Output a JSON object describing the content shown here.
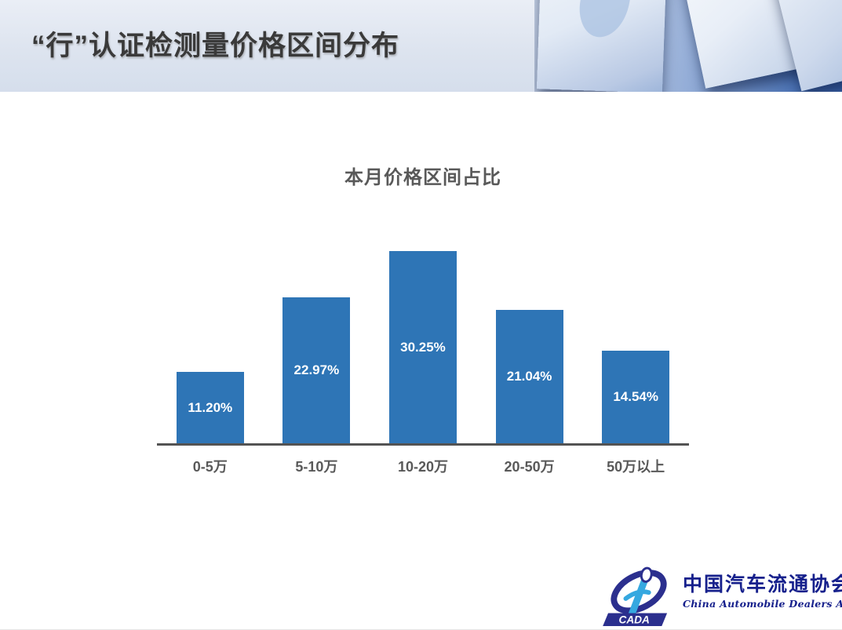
{
  "header": {
    "title": "“行”认证检测量价格区间分布"
  },
  "chart_data": {
    "type": "bar",
    "title": "本月价格区间占比",
    "categories": [
      "0-5万",
      "5-10万",
      "10-20万",
      "20-50万",
      "50万以上"
    ],
    "values": [
      11.2,
      22.97,
      30.25,
      21.04,
      14.54
    ],
    "value_labels": [
      "11.20%",
      "22.97%",
      "30.25%",
      "21.04%",
      "14.54%"
    ],
    "xlabel": "",
    "ylabel": "",
    "ylim": [
      0,
      33
    ],
    "grid": false,
    "legend": "none",
    "bar_color": "#2e75b6",
    "value_label_color": "#ffffff",
    "axis_color": "#535353",
    "category_label_color": "#595959",
    "title_color": "#595959"
  },
  "footer": {
    "logo_acronym": "CADA",
    "logo_name_zh": "中国汽车流通协会",
    "logo_name_en": "China  Automobile  Dealers  Association",
    "logo_color": "#2b2f8e",
    "logo_accent": "#35a8e0"
  }
}
